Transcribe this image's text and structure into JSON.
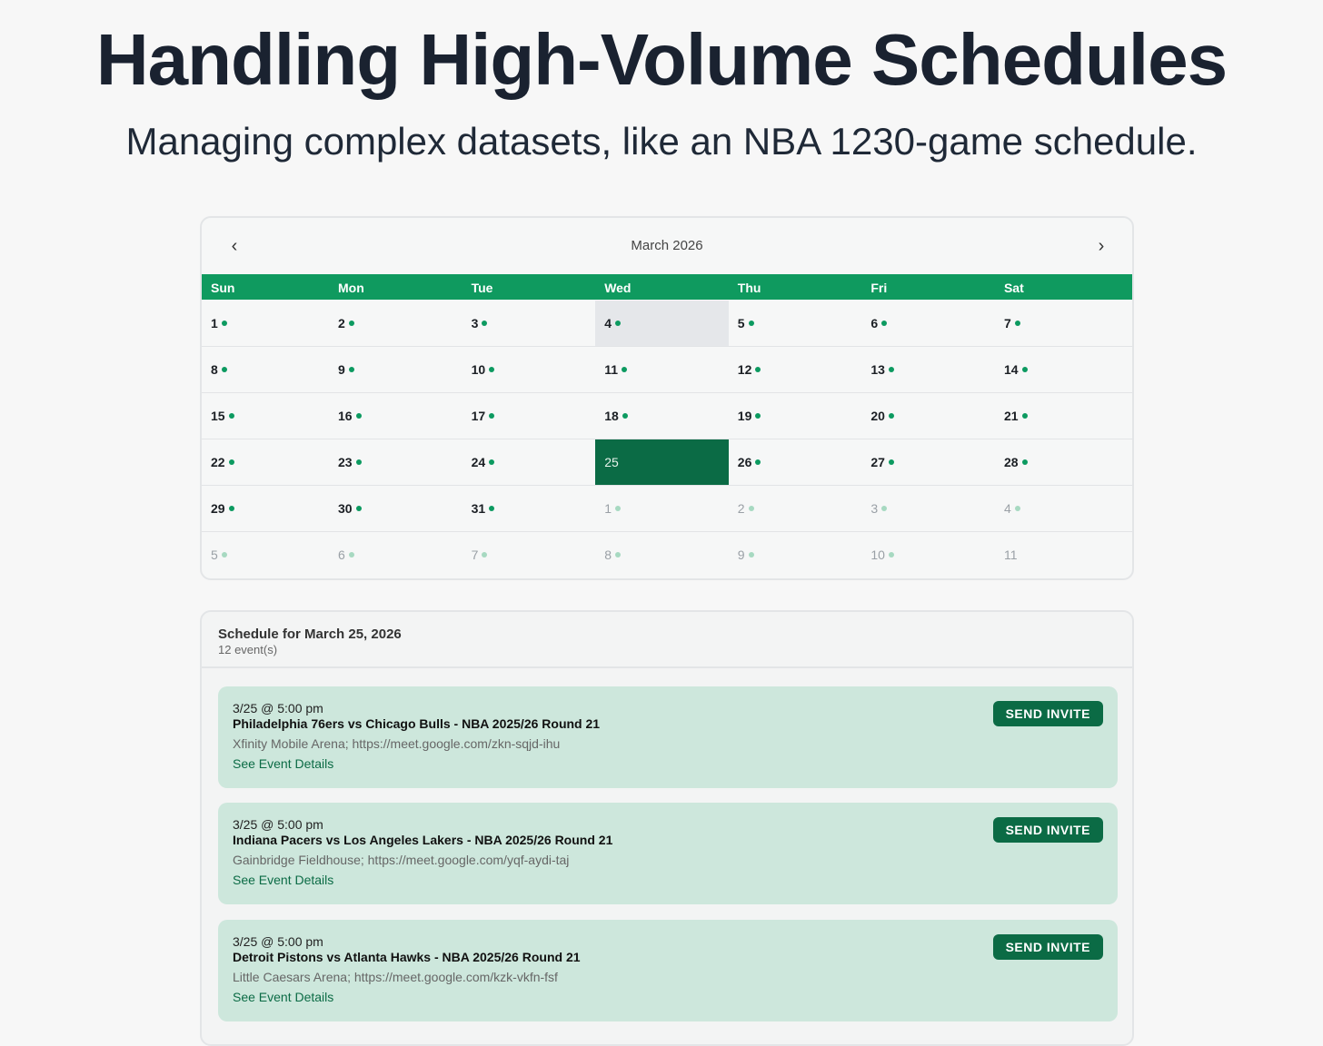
{
  "headline": "Handling High-Volume Schedules",
  "subheadline": "Managing complex datasets, like an NBA 1230-game schedule.",
  "calendar": {
    "month_title": "March 2026",
    "prev_label": "‹",
    "next_label": "›",
    "weekdays": [
      "Sun",
      "Mon",
      "Tue",
      "Wed",
      "Thu",
      "Fri",
      "Sat"
    ],
    "accent_color": "#0f9a5f",
    "selected_color": "#0b6b45",
    "weeks": [
      [
        {
          "d": "1",
          "dot": true
        },
        {
          "d": "2",
          "dot": true
        },
        {
          "d": "3",
          "dot": true
        },
        {
          "d": "4",
          "dot": true,
          "state": "today"
        },
        {
          "d": "5",
          "dot": true
        },
        {
          "d": "6",
          "dot": true
        },
        {
          "d": "7",
          "dot": true
        }
      ],
      [
        {
          "d": "8",
          "dot": true
        },
        {
          "d": "9",
          "dot": true
        },
        {
          "d": "10",
          "dot": true
        },
        {
          "d": "11",
          "dot": true
        },
        {
          "d": "12",
          "dot": true
        },
        {
          "d": "13",
          "dot": true
        },
        {
          "d": "14",
          "dot": true
        }
      ],
      [
        {
          "d": "15",
          "dot": true
        },
        {
          "d": "16",
          "dot": true
        },
        {
          "d": "17",
          "dot": true
        },
        {
          "d": "18",
          "dot": true
        },
        {
          "d": "19",
          "dot": true
        },
        {
          "d": "20",
          "dot": true
        },
        {
          "d": "21",
          "dot": true
        }
      ],
      [
        {
          "d": "22",
          "dot": true
        },
        {
          "d": "23",
          "dot": true
        },
        {
          "d": "24",
          "dot": true
        },
        {
          "d": "25",
          "dot": false,
          "state": "selected"
        },
        {
          "d": "26",
          "dot": true
        },
        {
          "d": "27",
          "dot": true
        },
        {
          "d": "28",
          "dot": true
        }
      ],
      [
        {
          "d": "29",
          "dot": true
        },
        {
          "d": "30",
          "dot": true
        },
        {
          "d": "31",
          "dot": true
        },
        {
          "d": "1",
          "dot": true,
          "muted": true
        },
        {
          "d": "2",
          "dot": true,
          "muted": true
        },
        {
          "d": "3",
          "dot": true,
          "muted": true
        },
        {
          "d": "4",
          "dot": true,
          "muted": true
        }
      ],
      [
        {
          "d": "5",
          "dot": true,
          "muted": true
        },
        {
          "d": "6",
          "dot": true,
          "muted": true
        },
        {
          "d": "7",
          "dot": true,
          "muted": true
        },
        {
          "d": "8",
          "dot": true,
          "muted": true
        },
        {
          "d": "9",
          "dot": true,
          "muted": true
        },
        {
          "d": "10",
          "dot": true,
          "muted": true
        },
        {
          "d": "11",
          "dot": false,
          "muted": true
        }
      ]
    ]
  },
  "schedule": {
    "title": "Schedule for March 25, 2026",
    "count": "12 event(s)",
    "events": [
      {
        "time": "3/25 @ 5:00 pm",
        "title": "Philadelphia 76ers vs Chicago Bulls - NBA 2025/26 Round 21",
        "location": "Xfinity Mobile Arena; https://meet.google.com/zkn-sqjd-ihu",
        "details_label": "See Event Details",
        "invite_label": "SEND INVITE"
      },
      {
        "time": "3/25 @ 5:00 pm",
        "title": "Indiana Pacers vs Los Angeles Lakers - NBA 2025/26 Round 21",
        "location": "Gainbridge Fieldhouse; https://meet.google.com/yqf-aydi-taj",
        "details_label": "See Event Details",
        "invite_label": "SEND INVITE"
      },
      {
        "time": "3/25 @ 5:00 pm",
        "title": "Detroit Pistons vs Atlanta Hawks - NBA 2025/26 Round 21",
        "location": "Little Caesars Arena; https://meet.google.com/kzk-vkfn-fsf",
        "details_label": "See Event Details",
        "invite_label": "SEND INVITE"
      }
    ]
  }
}
